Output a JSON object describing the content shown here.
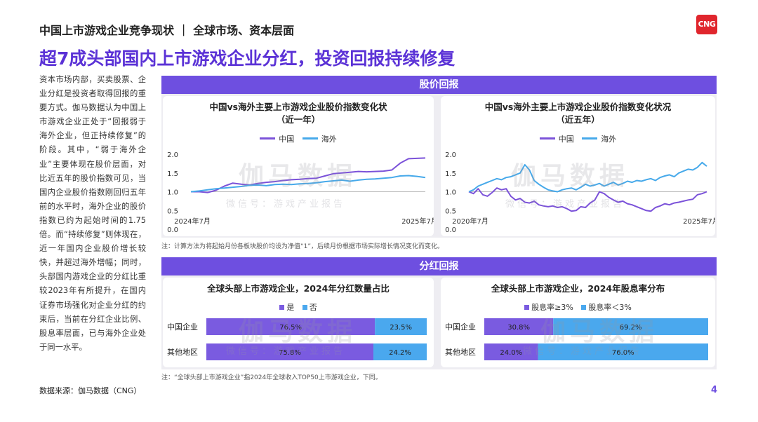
{
  "header": {
    "breadcrumb": "中国上市游戏企业竞争现状 ｜ 全球市场、资本层面",
    "logo": "CNG",
    "title": "超7成头部国内上市游戏企业分红，投资回报持续修复"
  },
  "intro": "资本市场内部，买卖股票、企业分红是投资者取得回报的重要方式。伽马数据认为中国上市游戏企业正处于“回报弱于海外企业，但正持续修复”的阶段。其中，“弱于海外企业”主要体现在股价层面，对比近五年的股价指数可见，当国内企业股价指数刚回归五年前的水平时，海外企业的股价指数已约为起始时间的1.75倍。而“持续修复”则体现在，近一年国内企业股价增长较快，并超过海外增幅；同时，头部国内游戏企业的分红比重较2023年有所提升，在国内证券市场强化对企业分红的约束后，当前在分红企业比例、股息率层面，已与海外企业处于同一水平。",
  "sections": {
    "stock": "股价回报",
    "dividend": "分红回报"
  },
  "watermark": {
    "main": "伽马数据",
    "sub": "微信号：游戏产业报告"
  },
  "notes": {
    "stock": "注：计算方法为将起始月份各板块股价均设为净值“1”，后续月份根据市场实际增长情况变化而变化。",
    "dividend": "注：“全球头部上市游戏企业”指2024年全球收入TOP50上市游戏企业，下同。"
  },
  "source": "数据来源：伽马数据（CNG）",
  "page_number": "4",
  "colors": {
    "accent": "#6e4fe0",
    "china_line": "#7b52d9",
    "overseas_line": "#46a9ea",
    "bar_purple": "#7a5be0",
    "bar_blue": "#4aa8ee"
  },
  "chart_data": [
    {
      "type": "line",
      "title_line1": "中国vs海外主要上市游戏企业股价指数变化状",
      "title_line2": "（近一年）",
      "x_start_label": "2024年7月",
      "x_end_label": "2025年7月",
      "ylim": [
        0,
        2
      ],
      "yticks": [
        "0.0",
        "0.5",
        "1.0",
        "1.5",
        "2.0"
      ],
      "series": [
        {
          "name": "中国",
          "values": [
            1.0,
            1.0,
            0.98,
            1.04,
            1.15,
            1.23,
            1.2,
            1.18,
            1.22,
            1.25,
            1.27,
            1.3,
            1.32,
            1.33,
            1.35,
            1.36,
            1.42,
            1.48,
            1.5,
            1.52,
            1.54,
            1.53,
            1.54,
            1.55,
            1.58,
            1.76,
            1.88,
            1.89,
            1.9
          ]
        },
        {
          "name": "海外",
          "values": [
            1.0,
            1.02,
            1.05,
            1.08,
            1.1,
            1.12,
            1.14,
            1.17,
            1.18,
            1.16,
            1.19,
            1.2,
            1.19,
            1.21,
            1.22,
            1.24,
            1.27,
            1.29,
            1.31,
            1.28,
            1.31,
            1.33,
            1.34,
            1.36,
            1.38,
            1.42,
            1.43,
            1.41,
            1.38
          ]
        }
      ]
    },
    {
      "type": "line",
      "title_line1": "中国vs海外主要上市游戏企业股价指数变化状况",
      "title_line2": "（近五年）",
      "x_start_label": "2020年7月",
      "x_end_label": "2025年7月",
      "ylim": [
        0,
        2
      ],
      "yticks": [
        "0.0",
        "0.5",
        "1.0",
        "1.5",
        "2.0"
      ],
      "series": [
        {
          "name": "中国",
          "values": [
            1.0,
            0.95,
            1.08,
            0.92,
            0.88,
            0.98,
            1.1,
            1.05,
            1.08,
            0.88,
            0.78,
            0.82,
            0.72,
            0.7,
            0.75,
            0.65,
            0.62,
            0.6,
            0.62,
            0.58,
            0.6,
            0.55,
            0.48,
            0.5,
            0.6,
            0.58,
            0.7,
            0.78,
            1.0,
            0.95,
            0.85,
            0.78,
            0.72,
            0.75,
            0.68,
            0.65,
            0.6,
            0.55,
            0.5,
            0.48,
            0.58,
            0.62,
            0.68,
            0.65,
            0.7,
            0.72,
            0.75,
            0.78,
            0.8,
            0.92,
            0.95,
            1.0
          ]
        },
        {
          "name": "海外",
          "values": [
            1.0,
            1.05,
            1.15,
            1.2,
            1.25,
            1.3,
            1.35,
            1.32,
            1.38,
            1.4,
            1.45,
            1.5,
            1.72,
            1.58,
            1.3,
            1.2,
            1.12,
            1.05,
            1.02,
            1.0,
            1.05,
            1.08,
            1.1,
            1.05,
            1.12,
            1.2,
            1.15,
            1.18,
            1.22,
            1.15,
            1.2,
            1.25,
            1.18,
            1.22,
            1.28,
            1.25,
            1.3,
            1.28,
            1.32,
            1.35,
            1.3,
            1.38,
            1.42,
            1.45,
            1.4,
            1.5,
            1.55,
            1.6,
            1.58,
            1.65,
            1.78,
            1.68
          ]
        }
      ]
    },
    {
      "type": "bar",
      "stacked": "percent",
      "orientation": "horizontal",
      "title": "全球头部上市游戏企业，2024年分红数量占比",
      "categories": [
        "中国企业",
        "其他地区"
      ],
      "series": [
        {
          "name": "是",
          "values": [
            76.5,
            75.8
          ],
          "labels": [
            "76.5%",
            "75.8%"
          ]
        },
        {
          "name": "否",
          "values": [
            23.5,
            24.2
          ],
          "labels": [
            "23.5%",
            "24.2%"
          ]
        }
      ]
    },
    {
      "type": "bar",
      "stacked": "percent",
      "orientation": "horizontal",
      "title": "全球头部上市游戏企业，2024年股息率分布",
      "categories": [
        "中国企业",
        "其他地区"
      ],
      "series": [
        {
          "name": "股息率≥3%",
          "values": [
            30.8,
            24.0
          ],
          "labels": [
            "30.8%",
            "24.0%"
          ]
        },
        {
          "name": "股息率＜3%",
          "values": [
            69.2,
            76.0
          ],
          "labels": [
            "69.2%",
            "76.0%"
          ]
        }
      ]
    }
  ]
}
